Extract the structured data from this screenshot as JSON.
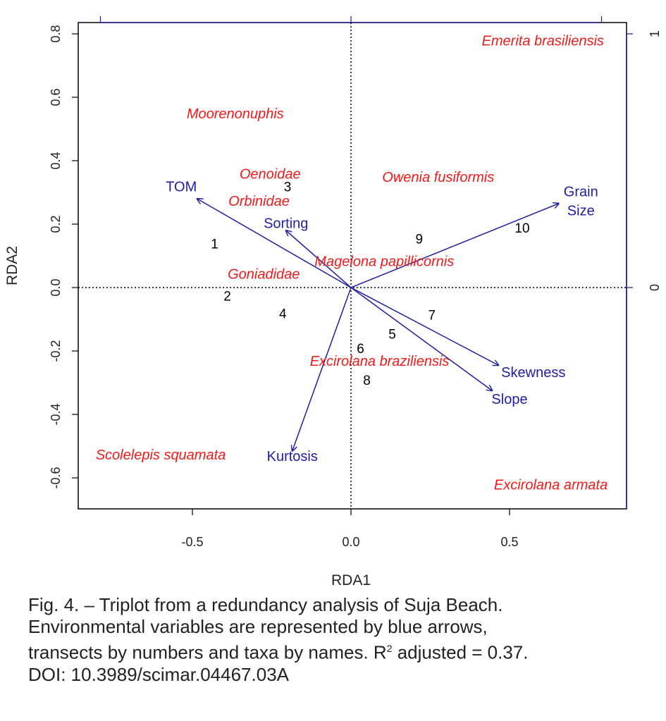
{
  "chart_data": {
    "type": "scatter",
    "subtype": "RDA triplot",
    "xlabel": "RDA1",
    "ylabel": "RDA2",
    "xlim": [
      -0.87,
      0.87
    ],
    "ylim": [
      -0.7,
      0.85
    ],
    "x_ticks": [
      -0.5,
      0.0,
      0.5
    ],
    "x_tick_labels": [
      "-0.5",
      "0.0",
      "0.5"
    ],
    "y_ticks": [
      -0.6,
      -0.4,
      -0.2,
      0.0,
      0.2,
      0.4,
      0.6,
      0.8
    ],
    "y_tick_labels": [
      "-0.6",
      "-0.4",
      "-0.2",
      "0.0",
      "0.2",
      "0.4",
      "0.6",
      "0.8"
    ],
    "top_axis_ticks": [
      -0.79,
      0.79
    ],
    "right_axis_ticks": [
      0.0,
      0.8
    ],
    "right_axis_tick_labels": [
      "0",
      "1"
    ],
    "reference_lines": {
      "x": 0,
      "y": 0,
      "style": "dotted"
    },
    "grid": false,
    "colors": {
      "arrows": "#1f1fa0",
      "taxa": "#ee1c1c",
      "transects": "#000000",
      "frame": "#000000",
      "secondary_axes": "#1f1fa0"
    },
    "arrows": [
      {
        "label": [
          "TOM"
        ],
        "x": -0.485,
        "y": 0.28,
        "label_x": -0.535,
        "label_y": 0.315
      },
      {
        "label": [
          "Sorting"
        ],
        "x": -0.205,
        "y": 0.18,
        "label_x": -0.205,
        "label_y": 0.2
      },
      {
        "label": [
          "Grain",
          "Size"
        ],
        "x": 0.655,
        "y": 0.265,
        "label_x": 0.725,
        "label_y": 0.27
      },
      {
        "label": [
          "Skewness"
        ],
        "x": 0.465,
        "y": -0.245,
        "label_x": 0.575,
        "label_y": -0.27
      },
      {
        "label": [
          "Slope"
        ],
        "x": 0.445,
        "y": -0.325,
        "label_x": 0.5,
        "label_y": -0.355
      },
      {
        "label": [
          "Kurtosis"
        ],
        "x": -0.185,
        "y": -0.515,
        "label_x": -0.185,
        "label_y": -0.535
      }
    ],
    "transects": [
      {
        "label": "1",
        "x": -0.43,
        "y": 0.135
      },
      {
        "label": "2",
        "x": -0.39,
        "y": -0.03
      },
      {
        "label": "3",
        "x": -0.2,
        "y": 0.315
      },
      {
        "label": "4",
        "x": -0.215,
        "y": -0.085
      },
      {
        "label": "5",
        "x": 0.13,
        "y": -0.15
      },
      {
        "label": "6",
        "x": 0.03,
        "y": -0.195
      },
      {
        "label": "7",
        "x": 0.255,
        "y": -0.09
      },
      {
        "label": "8",
        "x": 0.05,
        "y": -0.295
      },
      {
        "label": "9",
        "x": 0.215,
        "y": 0.15
      },
      {
        "label": "10",
        "x": 0.54,
        "y": 0.185
      }
    ],
    "taxa": [
      {
        "label": "Emerita brasiliensis",
        "x": 0.605,
        "y": 0.775
      },
      {
        "label": "Moorenonuphis",
        "x": -0.365,
        "y": 0.545
      },
      {
        "label": "Oenoidae",
        "x": -0.255,
        "y": 0.355
      },
      {
        "label": "Owenia fusiformis",
        "x": 0.275,
        "y": 0.345
      },
      {
        "label": "Orbinidae",
        "x": -0.29,
        "y": 0.27
      },
      {
        "label": "Magelona papillicornis",
        "x": 0.105,
        "y": 0.08
      },
      {
        "label": "Goniadidae",
        "x": -0.275,
        "y": 0.04
      },
      {
        "label": "Excirolana braziliensis",
        "x": 0.09,
        "y": -0.235
      },
      {
        "label": "Scolelepis squamata",
        "x": -0.6,
        "y": -0.53
      },
      {
        "label": "Excirolana armata",
        "x": 0.63,
        "y": -0.625
      }
    ]
  },
  "caption": {
    "line1": "Fig. 4. – Triplot from a redundancy analysis of Suja Beach.",
    "line2": "Environmental variables are represented by blue arrows,",
    "line3_pre": "transects by numbers and taxa by names. R",
    "line3_sup": "2",
    "line3_post": " adjusted = 0.37.",
    "line4": "DOI: 10.3989/scimar.04467.03A"
  }
}
